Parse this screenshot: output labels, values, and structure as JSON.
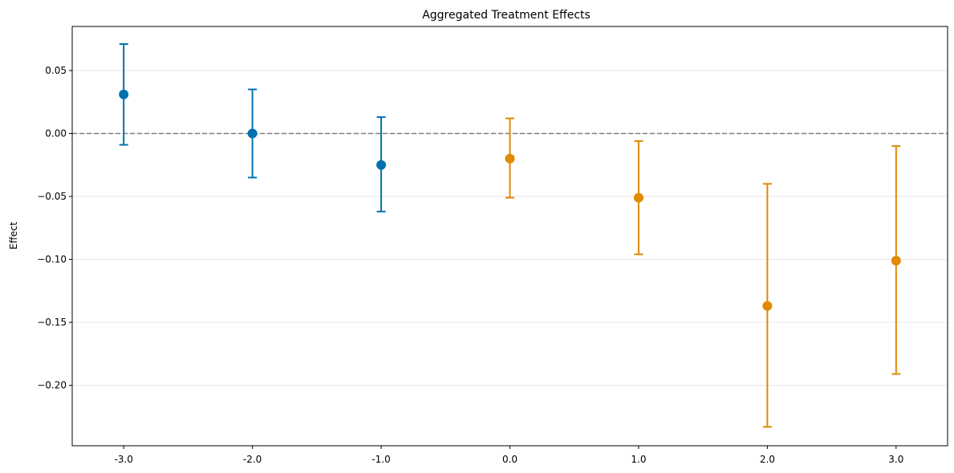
{
  "chart_data": {
    "type": "errorbar",
    "title": "Aggregated Treatment Effects",
    "xlabel": "",
    "ylabel": "Effect",
    "x_tick_labels": [
      "-3.0",
      "-2.0",
      "-1.0",
      "0.0",
      "1.0",
      "2.0",
      "3.0"
    ],
    "y_ticks": [
      {
        "value": 0.05,
        "label": "0.05"
      },
      {
        "value": 0.0,
        "label": "0.00"
      },
      {
        "value": -0.05,
        "label": "−0.05"
      },
      {
        "value": -0.1,
        "label": "−0.10"
      },
      {
        "value": -0.15,
        "label": "−0.15"
      },
      {
        "value": -0.2,
        "label": "−0.20"
      }
    ],
    "xlim": [
      -3.4,
      3.4
    ],
    "ylim": [
      -0.248,
      0.085
    ],
    "grid": "horizontal",
    "reference_line": {
      "value": 0.0,
      "style": "dashed",
      "color": "#808080"
    },
    "colors": {
      "pre": "#0072b2",
      "post": "#e08a00"
    },
    "points": [
      {
        "x": -3,
        "effect": 0.031,
        "lower": -0.009,
        "upper": 0.071,
        "group": "pre"
      },
      {
        "x": -2,
        "effect": 0.0,
        "lower": -0.035,
        "upper": 0.035,
        "group": "pre"
      },
      {
        "x": -1,
        "effect": -0.025,
        "lower": -0.062,
        "upper": 0.013,
        "group": "pre"
      },
      {
        "x": 0,
        "effect": -0.02,
        "lower": -0.051,
        "upper": 0.012,
        "group": "post"
      },
      {
        "x": 1,
        "effect": -0.051,
        "lower": -0.096,
        "upper": -0.006,
        "group": "post"
      },
      {
        "x": 2,
        "effect": -0.137,
        "lower": -0.233,
        "upper": -0.04,
        "group": "post"
      },
      {
        "x": 3,
        "effect": -0.101,
        "lower": -0.191,
        "upper": -0.01,
        "group": "post"
      }
    ]
  }
}
